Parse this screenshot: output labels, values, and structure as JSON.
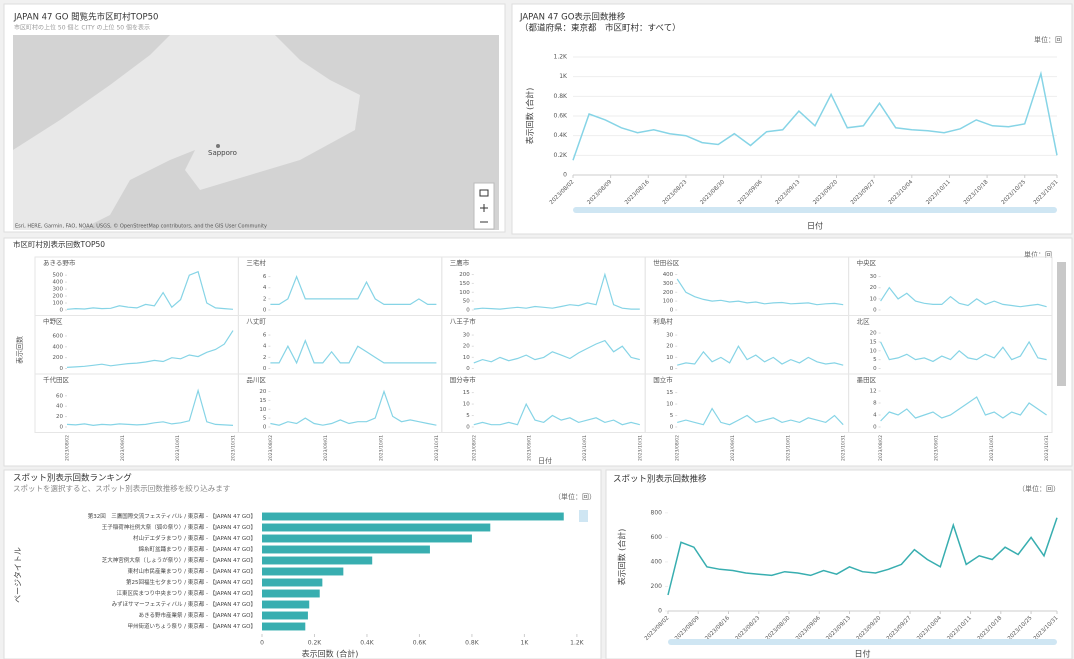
{
  "map": {
    "title": "JAPAN 47 GO 閲覧先市区町村TOP50",
    "subtitle": "市区町村の上位 50 個と CITY の上位 50 個を表示",
    "place": "Sapporo",
    "attribution": "Esri, HERE, Garmin, FAO, NOAA, USGS, © OpenStreetMap contributors, and the GIS User Community"
  },
  "chart_data": [
    {
      "type": "line",
      "title": "JAPAN 47 GO表示回数推移",
      "subtitle": "（都道府県：東京都　市区町村：すべて）",
      "unit": "単位：回",
      "y_label": "表示回数 (合計)",
      "x_label": "日付",
      "color": "#86d4e6",
      "x": [
        "2023/08/02",
        "2023/08/05",
        "2023/08/08",
        "2023/08/11",
        "2023/08/14",
        "2023/08/17",
        "2023/08/20",
        "2023/08/23",
        "2023/08/26",
        "2023/08/29",
        "2023/09/01",
        "2023/09/04",
        "2023/09/07",
        "2023/09/10",
        "2023/09/13",
        "2023/09/16",
        "2023/09/19",
        "2023/09/22",
        "2023/09/25",
        "2023/09/28",
        "2023/10/01",
        "2023/10/04",
        "2023/10/07",
        "2023/10/10",
        "2023/10/13",
        "2023/10/16",
        "2023/10/19",
        "2023/10/22",
        "2023/10/25",
        "2023/10/28",
        "2023/10/31"
      ],
      "values": [
        150,
        620,
        560,
        480,
        430,
        460,
        420,
        400,
        330,
        310,
        420,
        300,
        440,
        460,
        650,
        500,
        820,
        480,
        500,
        730,
        480,
        460,
        450,
        430,
        470,
        560,
        500,
        490,
        520,
        1030,
        200
      ],
      "ylim": [
        0,
        1200
      ],
      "yticks": [
        0,
        {
          "value": 200,
          "label": "0.2K"
        },
        {
          "value": 400,
          "label": "0.4K"
        },
        {
          "value": 600,
          "label": "0.6K"
        },
        {
          "value": 800,
          "label": "0.8K"
        },
        {
          "value": 1000,
          "label": "1K"
        },
        {
          "value": 1200,
          "label": "1.2K"
        }
      ],
      "xticks": [
        "2023/08/02",
        "2023/08/09",
        "2023/08/16",
        "2023/08/23",
        "2023/08/30",
        "2023/09/06",
        "2023/09/13",
        "2023/09/20",
        "2023/09/27",
        "2023/10/04",
        "2023/10/11",
        "2023/10/18",
        "2023/10/25",
        "2023/10/31"
      ],
      "grid": true
    },
    {
      "type": "small_multiples",
      "title": "市区町村別表示回数TOP50",
      "unit": "単位：回",
      "y_label": "表示回数",
      "x_label": "日付",
      "color": "#86d4e6",
      "xlim": [
        "2023/08/02",
        "2023/10/31"
      ],
      "xticks": [
        "2023/08/02",
        "2023/09/01",
        "2023/10/01",
        "2023/10/31"
      ],
      "panels": [
        {
          "name": "あきる野市",
          "ylim": [
            0,
            560
          ],
          "yticks": [
            0,
            100,
            200,
            300,
            400,
            500
          ],
          "values": [
            10,
            20,
            15,
            30,
            20,
            25,
            60,
            40,
            30,
            80,
            60,
            250,
            40,
            150,
            500,
            550,
            100,
            30,
            20,
            10
          ]
        },
        {
          "name": "三宅村",
          "ylim": [
            0,
            7
          ],
          "yticks": [
            0,
            2,
            4,
            6
          ],
          "values": [
            1,
            1,
            2,
            6,
            2,
            2,
            2,
            2,
            2,
            2,
            2,
            5,
            2,
            1,
            1,
            1,
            1,
            2,
            1,
            1
          ]
        },
        {
          "name": "三鷹市",
          "ylim": [
            0,
            220
          ],
          "yticks": [
            0,
            50,
            100,
            150,
            200
          ],
          "values": [
            5,
            10,
            8,
            5,
            10,
            15,
            10,
            20,
            15,
            10,
            20,
            30,
            25,
            40,
            30,
            200,
            30,
            10,
            5,
            5
          ]
        },
        {
          "name": "世田谷区",
          "ylim": [
            0,
            440
          ],
          "yticks": [
            0,
            100,
            200,
            300,
            400
          ],
          "values": [
            350,
            200,
            150,
            120,
            100,
            110,
            90,
            100,
            80,
            90,
            70,
            80,
            85,
            70,
            75,
            80,
            60,
            70,
            75,
            60
          ]
        },
        {
          "name": "中央区",
          "ylim": [
            0,
            35
          ],
          "yticks": [
            0,
            10,
            20,
            30
          ],
          "values": [
            8,
            20,
            10,
            15,
            8,
            6,
            5,
            5,
            12,
            6,
            4,
            10,
            5,
            8,
            5,
            4,
            3,
            4,
            5,
            3
          ]
        },
        {
          "name": "中野区",
          "ylim": [
            0,
            720
          ],
          "yticks": [
            0,
            200,
            400,
            600
          ],
          "values": [
            20,
            30,
            40,
            60,
            80,
            50,
            70,
            90,
            100,
            120,
            150,
            130,
            200,
            180,
            250,
            220,
            300,
            350,
            450,
            700
          ]
        },
        {
          "name": "八丈町",
          "ylim": [
            0,
            7
          ],
          "yticks": [
            0,
            2,
            4,
            6
          ],
          "values": [
            1,
            1,
            4,
            1,
            5,
            1,
            1,
            3,
            1,
            1,
            4,
            3,
            2,
            1,
            1,
            1,
            1,
            1,
            1,
            1
          ]
        },
        {
          "name": "八王子市",
          "ylim": [
            0,
            35
          ],
          "yticks": [
            0,
            10,
            20,
            30
          ],
          "values": [
            5,
            8,
            6,
            10,
            7,
            9,
            12,
            8,
            10,
            15,
            12,
            9,
            14,
            18,
            22,
            25,
            15,
            20,
            10,
            8
          ]
        },
        {
          "name": "利島村",
          "ylim": [
            0,
            35
          ],
          "yticks": [
            0,
            10,
            20,
            30
          ],
          "values": [
            3,
            5,
            4,
            15,
            6,
            10,
            5,
            20,
            8,
            12,
            6,
            10,
            4,
            8,
            5,
            10,
            6,
            4,
            5,
            3
          ]
        },
        {
          "name": "北区",
          "ylim": [
            0,
            22
          ],
          "yticks": [
            0,
            5,
            10,
            15,
            20
          ],
          "values": [
            15,
            5,
            6,
            8,
            5,
            6,
            4,
            7,
            5,
            10,
            6,
            5,
            8,
            6,
            12,
            5,
            7,
            15,
            6,
            5
          ]
        },
        {
          "name": "千代田区",
          "ylim": [
            0,
            75
          ],
          "yticks": [
            0,
            20,
            40,
            60
          ],
          "values": [
            5,
            4,
            6,
            3,
            5,
            4,
            6,
            5,
            4,
            5,
            8,
            10,
            6,
            8,
            12,
            70,
            10,
            5,
            4,
            3
          ]
        },
        {
          "name": "品川区",
          "ylim": [
            0,
            22
          ],
          "yticks": [
            0,
            5,
            10,
            15,
            20
          ],
          "values": [
            2,
            1,
            3,
            2,
            5,
            2,
            1,
            2,
            4,
            2,
            3,
            3,
            5,
            20,
            6,
            3,
            4,
            3,
            2,
            1
          ]
        },
        {
          "name": "国分寺市",
          "ylim": [
            0,
            17
          ],
          "yticks": [
            0,
            5,
            10,
            15
          ],
          "values": [
            1,
            2,
            1,
            1,
            2,
            1,
            10,
            3,
            2,
            5,
            3,
            4,
            2,
            3,
            4,
            2,
            3,
            1,
            2,
            1
          ]
        },
        {
          "name": "国立市",
          "ylim": [
            0,
            17
          ],
          "yticks": [
            0,
            5,
            10,
            15
          ],
          "values": [
            2,
            3,
            2,
            1,
            8,
            2,
            1,
            3,
            5,
            2,
            3,
            4,
            2,
            3,
            2,
            4,
            3,
            2,
            5,
            1
          ]
        },
        {
          "name": "墨田区",
          "ylim": [
            0,
            13
          ],
          "yticks": [
            0,
            4,
            8,
            12
          ],
          "values": [
            2,
            5,
            4,
            6,
            3,
            4,
            5,
            3,
            4,
            6,
            8,
            10,
            4,
            5,
            3,
            5,
            4,
            8,
            6,
            4
          ]
        }
      ]
    },
    {
      "type": "barh",
      "title": "スポット別表示回数ランキング",
      "subtitle": "スポットを選択すると、スポット別表示回数推移を絞り込みます",
      "unit": "（単位：回）",
      "y_label": "ページタイトル",
      "x_label": "表示回数 (合計)",
      "color": "#38aeb0",
      "categories": [
        "第32回　三鷹国際交流フェスティバル / 東京都 - 【JAPAN 47 GO】",
        "王子稲荷神社例大祭（狐の祭り）/ 東京都 - 【JAPAN 47 GO】",
        "村山デエダラまつり / 東京都 - 【JAPAN 47 GO】",
        "錦糸町盆踊まつり / 東京都 - 【JAPAN 47 GO】",
        "芝大神宮例大祭（しょうが祭り）/ 東京都 - 【JAPAN 47 GO】",
        "東村山市民産業まつり / 東京都 - 【JAPAN 47 GO】",
        "第25回福生七夕まつり / 東京都 - 【JAPAN 47 GO】",
        "江東区民まつり中央まつり / 東京都 - 【JAPAN 47 GO】",
        "みずほサマーフェスティバル / 東京都 - 【JAPAN 47 GO】",
        "あきる野市産業祭 / 東京都 - 【JAPAN 47 GO】",
        "甲州街道いちょう祭り / 東京都 - 【JAPAN 47 GO】"
      ],
      "values": [
        1150,
        870,
        800,
        640,
        420,
        310,
        230,
        220,
        180,
        175,
        165
      ],
      "xlim": [
        0,
        1250
      ],
      "xticks": [
        0,
        {
          "value": 200,
          "label": "0.2K"
        },
        {
          "value": 400,
          "label": "0.4K"
        },
        {
          "value": 600,
          "label": "0.6K"
        },
        {
          "value": 800,
          "label": "0.8K"
        },
        {
          "value": 1000,
          "label": "1K"
        },
        {
          "value": 1200,
          "label": "1.2K"
        }
      ]
    },
    {
      "type": "line",
      "title": "スポット別表示回数推移",
      "unit": "（単位：回）",
      "y_label": "表示回数 (合計)",
      "x_label": "日付",
      "color": "#38aeb0",
      "x": [
        "2023/08/02",
        "2023/08/05",
        "2023/08/08",
        "2023/08/11",
        "2023/08/14",
        "2023/08/17",
        "2023/08/20",
        "2023/08/23",
        "2023/08/26",
        "2023/08/29",
        "2023/09/01",
        "2023/09/04",
        "2023/09/07",
        "2023/09/10",
        "2023/09/13",
        "2023/09/16",
        "2023/09/19",
        "2023/09/22",
        "2023/09/25",
        "2023/09/28",
        "2023/10/01",
        "2023/10/04",
        "2023/10/07",
        "2023/10/10",
        "2023/10/13",
        "2023/10/16",
        "2023/10/19",
        "2023/10/22",
        "2023/10/25",
        "2023/10/28",
        "2023/10/31"
      ],
      "values": [
        130,
        560,
        520,
        360,
        340,
        330,
        310,
        300,
        290,
        320,
        310,
        290,
        330,
        300,
        360,
        320,
        310,
        340,
        380,
        500,
        420,
        360,
        700,
        380,
        450,
        420,
        520,
        460,
        600,
        450,
        760
      ],
      "ylim": [
        0,
        880
      ],
      "yticks": [
        0,
        200,
        400,
        600,
        800
      ],
      "xticks": [
        "2023/08/02",
        "2023/08/09",
        "2023/08/16",
        "2023/08/23",
        "2023/08/30",
        "2023/09/06",
        "2023/09/13",
        "2023/09/20",
        "2023/09/27",
        "2023/10/04",
        "2023/10/11",
        "2023/10/18",
        "2023/10/25",
        "2023/10/31"
      ],
      "grid": false
    }
  ]
}
